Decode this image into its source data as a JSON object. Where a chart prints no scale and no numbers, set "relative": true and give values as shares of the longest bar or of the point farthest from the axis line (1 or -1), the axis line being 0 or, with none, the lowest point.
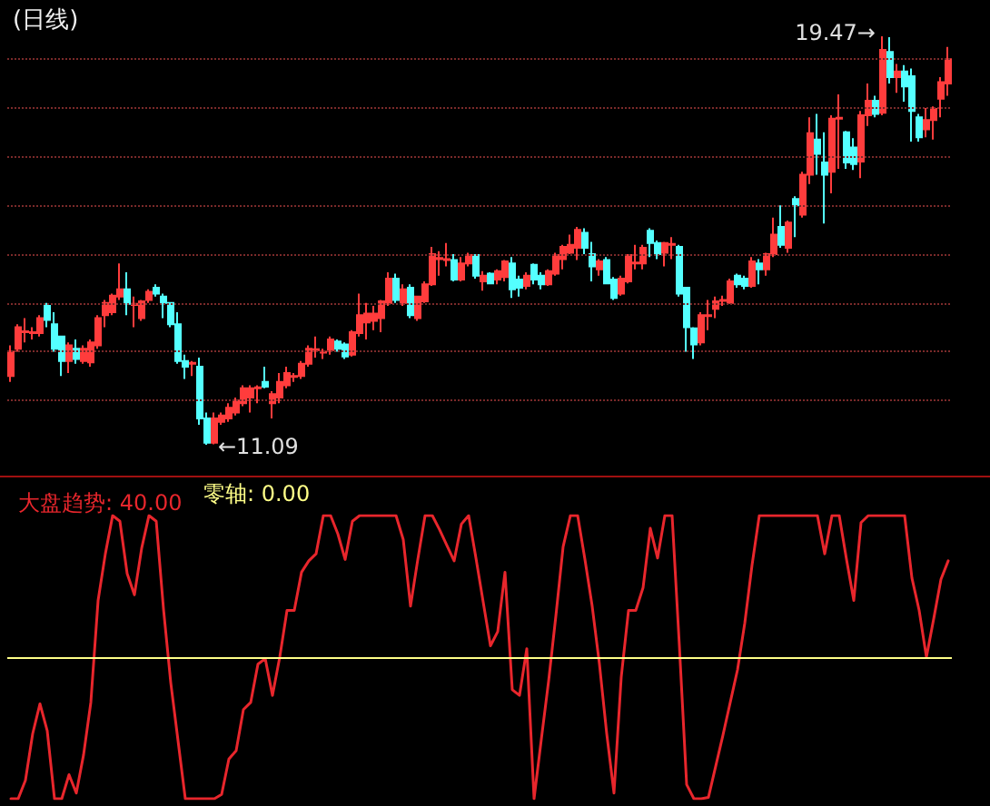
{
  "chart_data": [
    {
      "type": "candlestick",
      "title": "(日线)",
      "categories": [
        null,
        null,
        null,
        null,
        null,
        null,
        null,
        null,
        null,
        null,
        null,
        null,
        null,
        null,
        null,
        null,
        null,
        null,
        null,
        null,
        null,
        null,
        null,
        null,
        null,
        null,
        null,
        null,
        null,
        null,
        null,
        null,
        null,
        null,
        null,
        null,
        null,
        null,
        null,
        null,
        null,
        null,
        null,
        null,
        null,
        null,
        null,
        null,
        null,
        null,
        null,
        null,
        null,
        null,
        null,
        null,
        null,
        null,
        null,
        null,
        null,
        null,
        null,
        null,
        null,
        null,
        null,
        null,
        null,
        null,
        null,
        null,
        null,
        null,
        null,
        null,
        null,
        null,
        null,
        null,
        null,
        null,
        null,
        null,
        null,
        null,
        null,
        null,
        null,
        null,
        null,
        null,
        null,
        null,
        null,
        null,
        null,
        null,
        null,
        null,
        null,
        null,
        null,
        null,
        null,
        null,
        null,
        null,
        null,
        null,
        null,
        null,
        null,
        null,
        null,
        null,
        null,
        null,
        null,
        null,
        null,
        null,
        null,
        null,
        null,
        null,
        null,
        null,
        null,
        null
      ],
      "ohlc": [
        [
          12.5,
          13.13,
          12.38,
          13.0
        ],
        [
          13.06,
          13.56,
          13.0,
          13.5
        ],
        [
          13.4,
          13.69,
          13.19,
          13.42
        ],
        [
          13.38,
          13.5,
          13.25,
          13.4
        ],
        [
          13.38,
          13.75,
          13.31,
          13.69
        ],
        [
          13.94,
          14.0,
          13.5,
          13.65
        ],
        [
          13.56,
          13.81,
          13.0,
          13.06
        ],
        [
          13.31,
          13.31,
          12.5,
          12.81
        ],
        [
          12.81,
          13.19,
          12.56,
          13.13
        ],
        [
          13.06,
          13.25,
          12.75,
          12.85
        ],
        [
          12.81,
          13.13,
          12.75,
          13.06
        ],
        [
          12.78,
          13.25,
          12.69,
          13.19
        ],
        [
          13.13,
          13.75,
          13.06,
          13.69
        ],
        [
          13.75,
          14.06,
          13.5,
          14.0
        ],
        [
          13.81,
          14.19,
          13.75,
          14.15
        ],
        [
          14.13,
          14.81,
          14.06,
          14.28
        ],
        [
          14.28,
          14.63,
          13.75,
          13.98
        ],
        [
          13.96,
          14.13,
          13.5,
          13.98
        ],
        [
          13.69,
          14.06,
          13.63,
          14.03
        ],
        [
          14.06,
          14.28,
          14.0,
          14.23
        ],
        [
          14.31,
          14.38,
          14.13,
          14.19
        ],
        [
          14.13,
          14.19,
          13.69,
          14.0
        ],
        [
          14.0,
          14.0,
          13.5,
          13.56
        ],
        [
          13.56,
          13.81,
          12.75,
          12.81
        ],
        [
          12.81,
          12.94,
          12.44,
          12.69
        ],
        [
          12.75,
          12.81,
          12.5,
          12.77
        ],
        [
          12.69,
          12.88,
          11.5,
          11.63
        ],
        [
          11.63,
          11.75,
          11.09,
          11.13
        ],
        [
          11.13,
          11.75,
          11.1,
          11.63
        ],
        [
          11.56,
          11.75,
          11.5,
          11.69
        ],
        [
          11.63,
          11.94,
          11.56,
          11.85
        ],
        [
          11.75,
          12.06,
          11.69,
          12.0
        ],
        [
          11.94,
          12.31,
          11.88,
          12.25
        ],
        [
          12.06,
          12.31,
          11.75,
          12.25
        ],
        [
          12.25,
          12.31,
          11.94,
          12.27
        ],
        [
          12.38,
          12.69,
          12.25,
          12.28
        ],
        [
          11.94,
          12.19,
          11.63,
          12.13
        ],
        [
          12.06,
          12.56,
          11.94,
          12.38
        ],
        [
          12.31,
          12.69,
          12.25,
          12.56
        ],
        [
          12.48,
          12.56,
          12.38,
          12.5
        ],
        [
          12.5,
          12.81,
          12.44,
          12.75
        ],
        [
          12.75,
          13.13,
          12.69,
          13.06
        ],
        [
          13.03,
          13.31,
          12.88,
          13.05
        ],
        [
          12.98,
          13.06,
          12.85,
          13.0
        ],
        [
          13.03,
          13.31,
          12.94,
          13.25
        ],
        [
          13.21,
          13.25,
          13.0,
          13.06
        ],
        [
          13.15,
          13.19,
          12.85,
          12.9
        ],
        [
          12.94,
          13.44,
          12.9,
          13.4
        ],
        [
          13.38,
          14.19,
          13.31,
          13.75
        ],
        [
          13.6,
          14.0,
          13.25,
          13.78
        ],
        [
          13.63,
          13.94,
          13.44,
          13.78
        ],
        [
          13.69,
          14.06,
          13.4,
          14.03
        ],
        [
          14.0,
          14.63,
          13.94,
          14.5
        ],
        [
          14.5,
          14.6,
          14.0,
          14.06
        ],
        [
          14.0,
          14.38,
          13.94,
          14.28
        ],
        [
          14.31,
          14.38,
          13.69,
          13.75
        ],
        [
          13.69,
          14.15,
          13.63,
          14.13
        ],
        [
          14.03,
          14.44,
          14.0,
          14.38
        ],
        [
          14.38,
          15.15,
          14.35,
          15.0
        ],
        [
          14.9,
          15.06,
          14.56,
          14.92
        ],
        [
          14.88,
          15.23,
          14.75,
          14.9
        ],
        [
          14.88,
          15.0,
          14.44,
          14.48
        ],
        [
          14.48,
          14.94,
          14.44,
          14.81
        ],
        [
          14.81,
          15.03,
          14.75,
          14.98
        ],
        [
          14.98,
          15.0,
          14.5,
          14.56
        ],
        [
          14.44,
          14.65,
          14.25,
          14.56
        ],
        [
          14.6,
          14.63,
          14.38,
          14.4
        ],
        [
          14.48,
          14.69,
          14.38,
          14.65
        ],
        [
          14.53,
          14.88,
          14.44,
          14.85
        ],
        [
          14.81,
          14.94,
          14.1,
          14.28
        ],
        [
          14.48,
          14.56,
          14.13,
          14.31
        ],
        [
          14.35,
          14.63,
          14.28,
          14.56
        ],
        [
          14.78,
          14.81,
          14.38,
          14.48
        ],
        [
          14.56,
          14.63,
          14.28,
          14.38
        ],
        [
          14.38,
          14.69,
          14.35,
          14.65
        ],
        [
          14.6,
          15.03,
          14.56,
          14.98
        ],
        [
          14.9,
          15.19,
          14.69,
          15.15
        ],
        [
          15.03,
          15.4,
          15.0,
          15.19
        ],
        [
          15.13,
          15.56,
          14.88,
          15.5
        ],
        [
          15.44,
          15.53,
          15.0,
          15.13
        ],
        [
          15.0,
          15.25,
          14.44,
          14.75
        ],
        [
          14.69,
          14.9,
          14.56,
          14.85
        ],
        [
          14.88,
          14.94,
          14.38,
          14.4
        ],
        [
          14.48,
          14.53,
          14.06,
          14.1
        ],
        [
          14.19,
          14.56,
          14.15,
          14.5
        ],
        [
          14.44,
          15.0,
          14.4,
          14.98
        ],
        [
          14.81,
          15.19,
          14.69,
          14.83
        ],
        [
          14.81,
          15.19,
          14.69,
          15.13
        ],
        [
          15.48,
          15.53,
          14.94,
          15.23
        ],
        [
          15.23,
          15.28,
          14.9,
          15.0
        ],
        [
          15.03,
          15.25,
          14.75,
          15.23
        ],
        [
          15.19,
          15.35,
          14.9,
          15.21
        ],
        [
          15.15,
          15.19,
          14.13,
          14.19
        ],
        [
          14.31,
          14.31,
          13.0,
          13.5
        ],
        [
          13.48,
          13.5,
          12.85,
          13.15
        ],
        [
          13.19,
          13.81,
          13.13,
          13.75
        ],
        [
          13.73,
          14.06,
          13.44,
          13.75
        ],
        [
          13.88,
          14.13,
          13.69,
          14.03
        ],
        [
          14.04,
          14.15,
          13.94,
          14.06
        ],
        [
          14.0,
          14.5,
          13.98,
          14.44
        ],
        [
          14.56,
          14.6,
          14.31,
          14.38
        ],
        [
          14.5,
          14.56,
          14.28,
          14.35
        ],
        [
          14.35,
          14.94,
          14.31,
          14.85
        ],
        [
          14.81,
          14.9,
          14.38,
          14.69
        ],
        [
          14.69,
          15.03,
          14.56,
          15.0
        ],
        [
          15.0,
          15.75,
          14.94,
          15.4
        ],
        [
          15.56,
          16.0,
          15.13,
          15.19
        ],
        [
          15.13,
          15.69,
          15.03,
          15.65
        ],
        [
          16.13,
          16.19,
          15.35,
          16.0
        ],
        [
          15.81,
          16.69,
          15.75,
          16.63
        ],
        [
          16.63,
          17.81,
          16.44,
          17.48
        ],
        [
          17.35,
          17.88,
          16.63,
          17.06
        ],
        [
          16.88,
          17.5,
          15.63,
          16.63
        ],
        [
          16.69,
          17.85,
          16.25,
          17.78
        ],
        [
          17.78,
          18.28,
          16.75,
          17.8
        ],
        [
          17.5,
          17.53,
          16.75,
          16.88
        ],
        [
          17.19,
          17.38,
          16.73,
          16.85
        ],
        [
          16.9,
          17.94,
          16.56,
          17.85
        ],
        [
          17.85,
          18.5,
          17.63,
          18.15
        ],
        [
          18.15,
          18.25,
          17.81,
          17.88
        ],
        [
          17.9,
          19.47,
          17.85,
          19.19
        ],
        [
          19.15,
          19.45,
          18.5,
          18.63
        ],
        [
          18.63,
          18.9,
          18.31,
          18.75
        ],
        [
          18.75,
          18.88,
          18.13,
          18.44
        ],
        [
          18.65,
          18.81,
          17.31,
          17.94
        ],
        [
          17.81,
          17.88,
          17.31,
          17.4
        ],
        [
          17.56,
          18.0,
          17.4,
          17.75
        ],
        [
          17.75,
          18.03,
          17.35,
          17.98
        ],
        [
          18.19,
          18.63,
          17.81,
          18.53
        ],
        [
          18.5,
          19.25,
          18.25,
          19.0
        ]
      ],
      "yticks": [
        {
          "value": 12,
          "label": null
        },
        {
          "value": 13,
          "label": null
        },
        {
          "value": 14,
          "label": null
        },
        {
          "value": 15,
          "label": null
        },
        {
          "value": 16,
          "label": null
        },
        {
          "value": 17,
          "label": null
        },
        {
          "value": 18,
          "label": null
        },
        {
          "value": 19,
          "label": null
        }
      ],
      "grid": "y",
      "tick_labels": false,
      "annotations": [
        "19.47→",
        "←11.09"
      ]
    },
    {
      "type": "line",
      "relative": true,
      "legend": "top left",
      "marker": "none",
      "line_style": "solid",
      "tick_labels": false,
      "categories": [
        null,
        null,
        null,
        null,
        null,
        null,
        null,
        null,
        null,
        null,
        null,
        null,
        null,
        null,
        null,
        null,
        null,
        null,
        null,
        null,
        null,
        null,
        null,
        null,
        null,
        null,
        null,
        null,
        null,
        null,
        null,
        null,
        null,
        null,
        null,
        null,
        null,
        null,
        null,
        null,
        null,
        null,
        null,
        null,
        null,
        null,
        null,
        null,
        null,
        null,
        null,
        null,
        null,
        null,
        null,
        null,
        null,
        null,
        null,
        null,
        null,
        null,
        null,
        null,
        null,
        null,
        null,
        null,
        null,
        null,
        null,
        null,
        null,
        null,
        null,
        null,
        null,
        null,
        null,
        null,
        null,
        null,
        null,
        null,
        null,
        null,
        null,
        null,
        null,
        null,
        null,
        null,
        null,
        null,
        null,
        null,
        null,
        null,
        null,
        null,
        null,
        null,
        null,
        null,
        null,
        null,
        null,
        null,
        null,
        null,
        null,
        null,
        null,
        null,
        null,
        null,
        null,
        null,
        null,
        null,
        null,
        null,
        null,
        null,
        null,
        null,
        null,
        null,
        null,
        null
      ],
      "series": [
        {
          "name": "大盘趋势: 40.00",
          "color": "#e8262c",
          "values": [
            -1,
            -1,
            -0.87,
            -0.54,
            -0.33,
            -0.52,
            -1,
            -1,
            -0.83,
            -0.96,
            -0.69,
            -0.32,
            0.4,
            0.73,
            1,
            0.96,
            0.59,
            0.44,
            0.77,
            1,
            0.96,
            0.34,
            -0.18,
            -0.59,
            -1,
            -1,
            -1,
            -1,
            -1,
            -0.97,
            -0.72,
            -0.66,
            -0.37,
            -0.32,
            -0.05,
            -0.01,
            -0.27,
            0,
            0.33,
            0.33,
            0.6,
            0.68,
            0.73,
            1,
            1,
            0.87,
            0.69,
            0.96,
            1,
            1,
            1,
            1,
            1,
            1,
            0.83,
            0.36,
            0.69,
            1,
            1,
            0.9,
            0.79,
            0.68,
            0.94,
            1,
            0.7,
            0.39,
            0.08,
            0.18,
            0.6,
            -0.23,
            -0.27,
            0.06,
            -1,
            -0.58,
            -0.17,
            0.29,
            0.78,
            1,
            1,
            0.69,
            0.36,
            -0.05,
            -0.54,
            -0.96,
            -0.14,
            0.33,
            0.33,
            0.49,
            0.91,
            0.7,
            1,
            1,
            0.08,
            -0.9,
            -1,
            -1,
            -0.99,
            -0.77,
            -0.55,
            -0.32,
            -0.09,
            0.24,
            0.65,
            1,
            1,
            1,
            1,
            1,
            1,
            1,
            1,
            1,
            0.73,
            1,
            1,
            0.69,
            0.4,
            0.95,
            1,
            1,
            1,
            1,
            1,
            1,
            0.56,
            0.33,
            0,
            0.27,
            0.55,
            0.68
          ]
        }
      ],
      "ref_lines": [
        {
          "axis": "y",
          "value": 0,
          "label": "零轴: 0.00",
          "color": "#ffff88"
        }
      ]
    }
  ]
}
